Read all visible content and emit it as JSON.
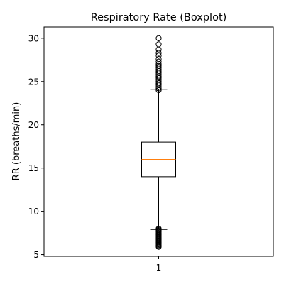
{
  "chart_data": {
    "type": "box",
    "title": "Respiratory Rate (Boxplot)",
    "xlabel": "",
    "ylabel": "RR (breaths/min)",
    "categories": [
      "1"
    ],
    "ylim": [
      4.8,
      31.3
    ],
    "yticks": [
      5,
      10,
      15,
      20,
      25,
      30
    ],
    "grid": false,
    "boxes": [
      {
        "label": "1",
        "whisker_low": 7.9,
        "q1": 14.0,
        "median": 16.0,
        "q3": 18.0,
        "whisker_high": 24.1,
        "outliers_high": [
          24.0,
          24.2,
          24.4,
          24.6,
          24.8,
          25.0,
          25.2,
          25.4,
          25.6,
          25.8,
          26.0,
          26.2,
          26.4,
          26.6,
          26.8,
          27.0,
          27.3,
          27.6,
          28.0,
          28.3,
          28.7,
          29.3,
          30.0
        ],
        "outliers_low": [
          5.9,
          6.0,
          6.1,
          6.2,
          6.3,
          6.4,
          6.5,
          6.6,
          6.7,
          6.8,
          6.9,
          7.0,
          7.1,
          7.2,
          7.3,
          7.4,
          7.5,
          7.6,
          7.7,
          7.8,
          7.9,
          8.0
        ]
      }
    ],
    "colors": {
      "box": "#000000",
      "median": "#ff7f0e",
      "outlier": "#000000"
    }
  }
}
